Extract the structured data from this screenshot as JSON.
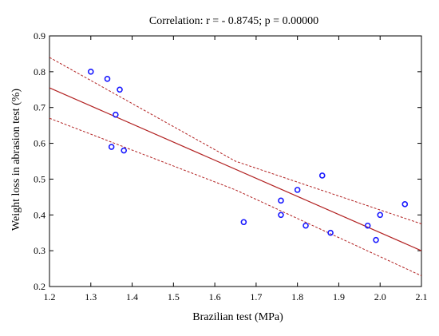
{
  "chart_data": {
    "type": "scatter",
    "title": "Correlation: r = - 0.8745; p = 0.00000",
    "xlabel": "Brazilian test (MPa)",
    "ylabel": "Weight loss in abrasion test (%)",
    "xlim": [
      1.2,
      2.1
    ],
    "ylim": [
      0.2,
      0.9
    ],
    "xticks": [
      1.2,
      1.3,
      1.4,
      1.5,
      1.6,
      1.7,
      1.8,
      1.9,
      2.0,
      2.1
    ],
    "xtick_labels": [
      "1.2",
      "1.3",
      "1.4",
      "1.5",
      "1.6",
      "1.7",
      "1.8",
      "1.9",
      "2.0",
      "2.1"
    ],
    "yticks": [
      0.2,
      0.3,
      0.4,
      0.5,
      0.6,
      0.7,
      0.8,
      0.9
    ],
    "ytick_labels": [
      "0.2",
      "0.3",
      "0.4",
      "0.5",
      "0.6",
      "0.7",
      "0.8",
      "0.9"
    ],
    "grid": false,
    "points": [
      {
        "x": 1.3,
        "y": 0.8
      },
      {
        "x": 1.34,
        "y": 0.78
      },
      {
        "x": 1.37,
        "y": 0.75
      },
      {
        "x": 1.36,
        "y": 0.68
      },
      {
        "x": 1.35,
        "y": 0.59
      },
      {
        "x": 1.38,
        "y": 0.58
      },
      {
        "x": 1.67,
        "y": 0.38
      },
      {
        "x": 1.76,
        "y": 0.44
      },
      {
        "x": 1.76,
        "y": 0.4
      },
      {
        "x": 1.8,
        "y": 0.47
      },
      {
        "x": 1.82,
        "y": 0.37
      },
      {
        "x": 1.86,
        "y": 0.51
      },
      {
        "x": 1.88,
        "y": 0.35
      },
      {
        "x": 1.97,
        "y": 0.37
      },
      {
        "x": 1.99,
        "y": 0.33
      },
      {
        "x": 2.0,
        "y": 0.4
      },
      {
        "x": 2.06,
        "y": 0.43
      }
    ],
    "regression_line": {
      "x": [
        1.2,
        2.1
      ],
      "y": [
        0.755,
        0.3
      ]
    },
    "confidence_band_upper": {
      "x": [
        1.2,
        1.65,
        2.1
      ],
      "y": [
        0.84,
        0.55,
        0.375
      ]
    },
    "confidence_band_lower": {
      "x": [
        1.2,
        1.65,
        2.1
      ],
      "y": [
        0.67,
        0.47,
        0.23
      ]
    },
    "colors": {
      "points": "#1a1aff",
      "regression": "#b22222",
      "confidence": "#b22222",
      "axis": "#000000"
    }
  }
}
